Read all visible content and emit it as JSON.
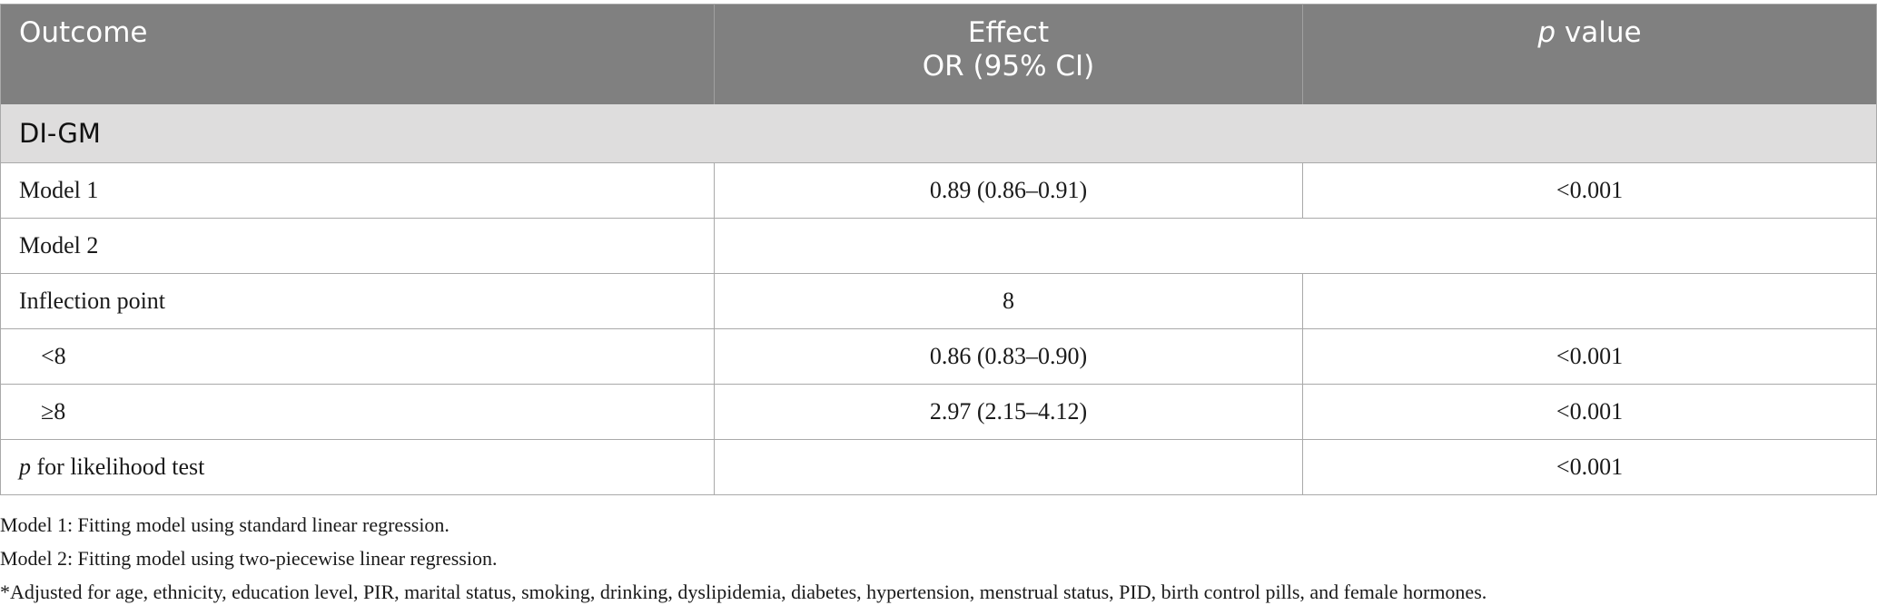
{
  "table": {
    "headers": {
      "outcome": "Outcome",
      "effect_line1": "Effect",
      "effect_line2": "OR (95% CI)",
      "p_italic": "p",
      "p_rest": " value"
    },
    "section": "DI-GM",
    "rows": [
      {
        "label": "Model 1",
        "effect": "0.89 (0.86–0.91)",
        "p": "<0.001"
      },
      {
        "label": "Model 2",
        "effect": "",
        "p": ""
      },
      {
        "label": "Inflection point",
        "effect": "8",
        "p": ""
      },
      {
        "label": "<8",
        "effect": "0.86 (0.83–0.90)",
        "p": "<0.001"
      },
      {
        "label": "≥8",
        "effect": "2.97 (2.15–4.12)",
        "p": "<0.001"
      },
      {
        "label_italic": "p",
        "label_rest": " for likelihood test",
        "effect": "",
        "p": "<0.001"
      }
    ]
  },
  "footnotes": [
    "Model 1: Fitting model using standard linear regression.",
    "Model 2: Fitting model using two-piecewise linear regression.",
    "*Adjusted for age, ethnicity, education level, PIR, marital status, smoking, drinking, dyslipidemia, diabetes, hypertension, menstrual status, PID, birth control pills, and female hormones."
  ],
  "colors": {
    "header_bg": "#808080",
    "section_bg": "#dedddd",
    "border": "#a9a9a9"
  }
}
